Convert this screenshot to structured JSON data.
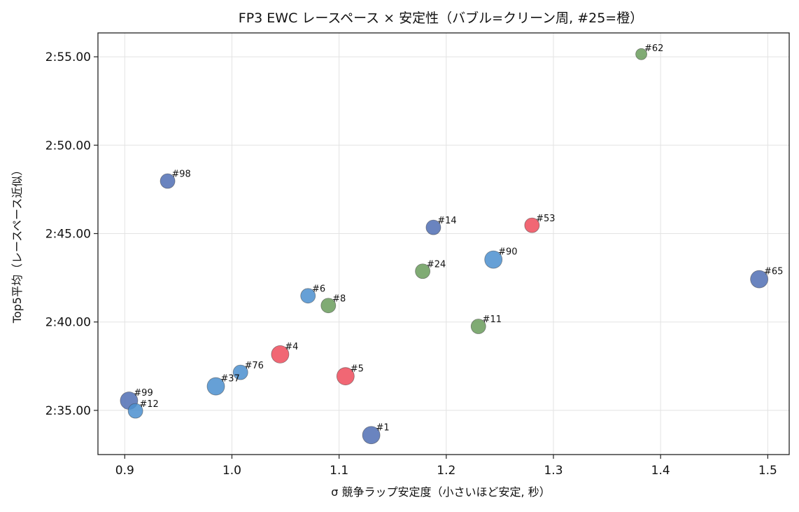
{
  "chart_data": {
    "type": "scatter",
    "title": "FP3 EWC レースペース × 安定性（バブル=クリーン周, #25=橙）",
    "xlabel": "σ 競争ラップ安定度（小さいほど安定, 秒）",
    "ylabel": "Top5平均（レースペース近似）",
    "xlim": [
      0.875,
      1.52
    ],
    "ylim": [
      152.5,
      176.35
    ],
    "grid": true,
    "x_ticks": [
      {
        "value": 0.9,
        "label": "0.9"
      },
      {
        "value": 1.0,
        "label": "1.0"
      },
      {
        "value": 1.1,
        "label": "1.1"
      },
      {
        "value": 1.2,
        "label": "1.2"
      },
      {
        "value": 1.3,
        "label": "1.3"
      },
      {
        "value": 1.4,
        "label": "1.4"
      },
      {
        "value": 1.5,
        "label": "1.5"
      }
    ],
    "y_ticks": [
      {
        "value": 155,
        "label": "2:35.00"
      },
      {
        "value": 160,
        "label": "2:40.00"
      },
      {
        "value": 165,
        "label": "2:45.00"
      },
      {
        "value": 170,
        "label": "2:50.00"
      },
      {
        "value": 175,
        "label": "2:55.00"
      }
    ],
    "colors": {
      "red": "#ee4c5c",
      "blue": "#4b8fcf",
      "navy": "#506eb4",
      "green": "#6a9c5c"
    },
    "points": [
      {
        "label": "#98",
        "x": 0.94,
        "y": 167.97,
        "size": "medium",
        "color": "navy"
      },
      {
        "label": "#62",
        "x": 1.382,
        "y": 175.15,
        "size": "small",
        "color": "green"
      },
      {
        "label": "#14",
        "x": 1.188,
        "y": 165.35,
        "size": "medium",
        "color": "navy"
      },
      {
        "label": "#53",
        "x": 1.28,
        "y": 165.47,
        "size": "medium",
        "color": "red"
      },
      {
        "label": "#90",
        "x": 1.244,
        "y": 163.53,
        "size": "large",
        "color": "blue"
      },
      {
        "label": "#24",
        "x": 1.178,
        "y": 162.87,
        "size": "medium",
        "color": "green"
      },
      {
        "label": "#65",
        "x": 1.492,
        "y": 162.42,
        "size": "large",
        "color": "navy"
      },
      {
        "label": "#6",
        "x": 1.071,
        "y": 161.48,
        "size": "medium",
        "color": "blue"
      },
      {
        "label": "#8",
        "x": 1.09,
        "y": 160.93,
        "size": "medium",
        "color": "green"
      },
      {
        "label": "#11",
        "x": 1.23,
        "y": 159.75,
        "size": "medium",
        "color": "green"
      },
      {
        "label": "#4",
        "x": 1.045,
        "y": 158.17,
        "size": "large",
        "color": "red"
      },
      {
        "label": "#76",
        "x": 1.008,
        "y": 157.15,
        "size": "medium",
        "color": "blue"
      },
      {
        "label": "#5",
        "x": 1.106,
        "y": 156.93,
        "size": "large",
        "color": "red"
      },
      {
        "label": "#37",
        "x": 0.985,
        "y": 156.36,
        "size": "large",
        "color": "blue"
      },
      {
        "label": "#99",
        "x": 0.904,
        "y": 155.55,
        "size": "large",
        "color": "navy"
      },
      {
        "label": "#12",
        "x": 0.91,
        "y": 154.97,
        "size": "medium",
        "color": "blue"
      },
      {
        "label": "#1",
        "x": 1.13,
        "y": 153.6,
        "size": "large",
        "color": "navy"
      }
    ]
  }
}
